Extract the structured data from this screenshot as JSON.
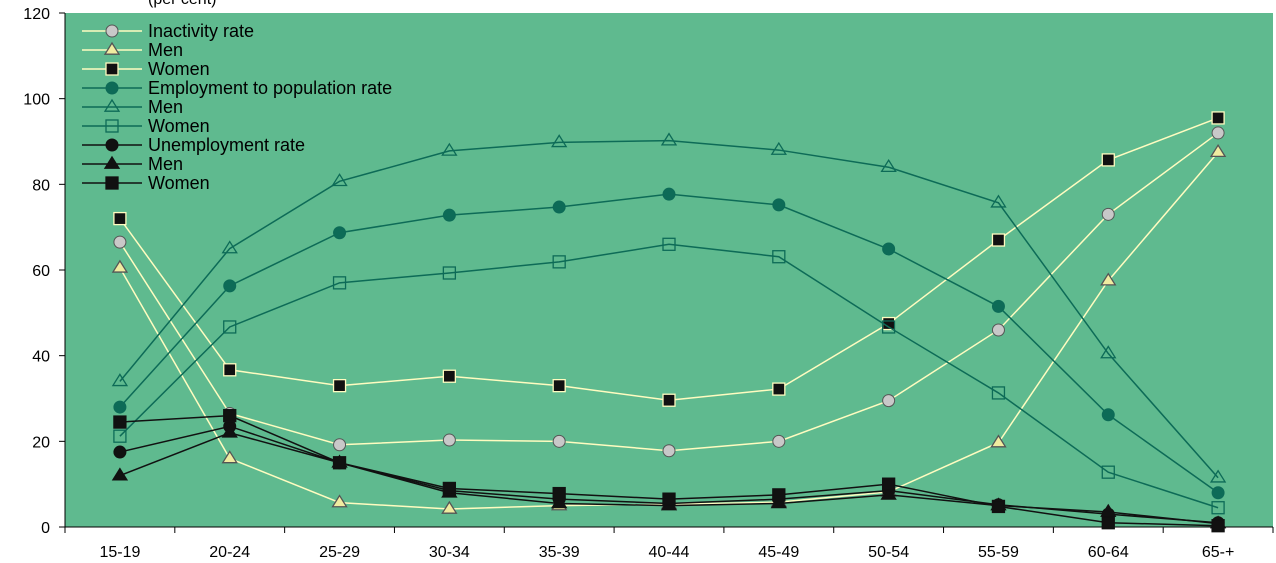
{
  "chart_data": {
    "type": "line",
    "subtitle": "(per cent)",
    "categories": [
      "15-19",
      "20-24",
      "25-29",
      "30-34",
      "35-39",
      "40-44",
      "45-49",
      "50-54",
      "55-59",
      "60-64",
      "65-+"
    ],
    "ylim": [
      0,
      120
    ],
    "yticks": [
      0,
      20,
      40,
      60,
      80,
      100,
      120
    ],
    "grid": false,
    "legend_position": "top-left",
    "plot_background": "#5fba8f",
    "series": [
      {
        "name": "Inactivity rate",
        "marker": "circle",
        "marker_fill": "#c8c8c8",
        "line_color": "#fffcc0",
        "values": [
          66.5,
          26.5,
          19.2,
          20.3,
          20.0,
          17.8,
          20.0,
          29.5,
          46.0,
          73.0,
          92.0
        ]
      },
      {
        "name": "Men",
        "marker": "triangle",
        "marker_fill": "#f0eca0",
        "line_color": "#fffcc0",
        "values": [
          60.5,
          16.0,
          5.7,
          4.2,
          5.0,
          5.3,
          5.8,
          8.2,
          19.7,
          57.5,
          87.5
        ]
      },
      {
        "name": "Women",
        "marker": "square",
        "marker_fill": "#111111",
        "line_color": "#fffcc0",
        "values": [
          72.0,
          36.7,
          33.0,
          35.2,
          33.0,
          29.6,
          32.2,
          47.5,
          67.0,
          85.7,
          95.5
        ]
      },
      {
        "name": "Employment to population rate",
        "marker": "circle",
        "marker_fill": "#0d6b57",
        "line_color": "#0d6b57",
        "values": [
          28.0,
          56.3,
          68.7,
          72.8,
          74.7,
          77.7,
          75.2,
          64.9,
          51.5,
          26.2,
          8.0
        ]
      },
      {
        "name": "Men",
        "marker": "triangle-open",
        "marker_fill": "none",
        "line_color": "#0d6b57",
        "values": [
          34.0,
          65.0,
          80.7,
          87.8,
          89.8,
          90.2,
          88.0,
          84.0,
          75.7,
          40.5,
          11.5
        ]
      },
      {
        "name": "Women",
        "marker": "square-open",
        "marker_fill": "none",
        "line_color": "#0d6b57",
        "values": [
          21.2,
          46.7,
          57.0,
          59.3,
          61.9,
          66.0,
          63.1,
          46.7,
          31.3,
          12.8,
          4.5
        ]
      },
      {
        "name": "Unemployment rate",
        "marker": "circle",
        "marker_fill": "#111111",
        "line_color": "#111111",
        "values": [
          17.5,
          23.5,
          15.0,
          8.5,
          6.5,
          5.5,
          6.5,
          8.5,
          5.2,
          3.0,
          1.0
        ]
      },
      {
        "name": "Men",
        "marker": "triangle",
        "marker_fill": "#111111",
        "line_color": "#111111",
        "values": [
          12.0,
          22.0,
          15.0,
          8.0,
          5.5,
          5.0,
          5.5,
          7.5,
          5.0,
          3.5,
          0.8
        ]
      },
      {
        "name": "Women",
        "marker": "square",
        "marker_fill": "#111111",
        "line_color": "#111111",
        "values": [
          24.5,
          26.0,
          15.0,
          9.0,
          7.8,
          6.5,
          7.5,
          10.0,
          4.8,
          1.0,
          0.3
        ]
      }
    ]
  }
}
